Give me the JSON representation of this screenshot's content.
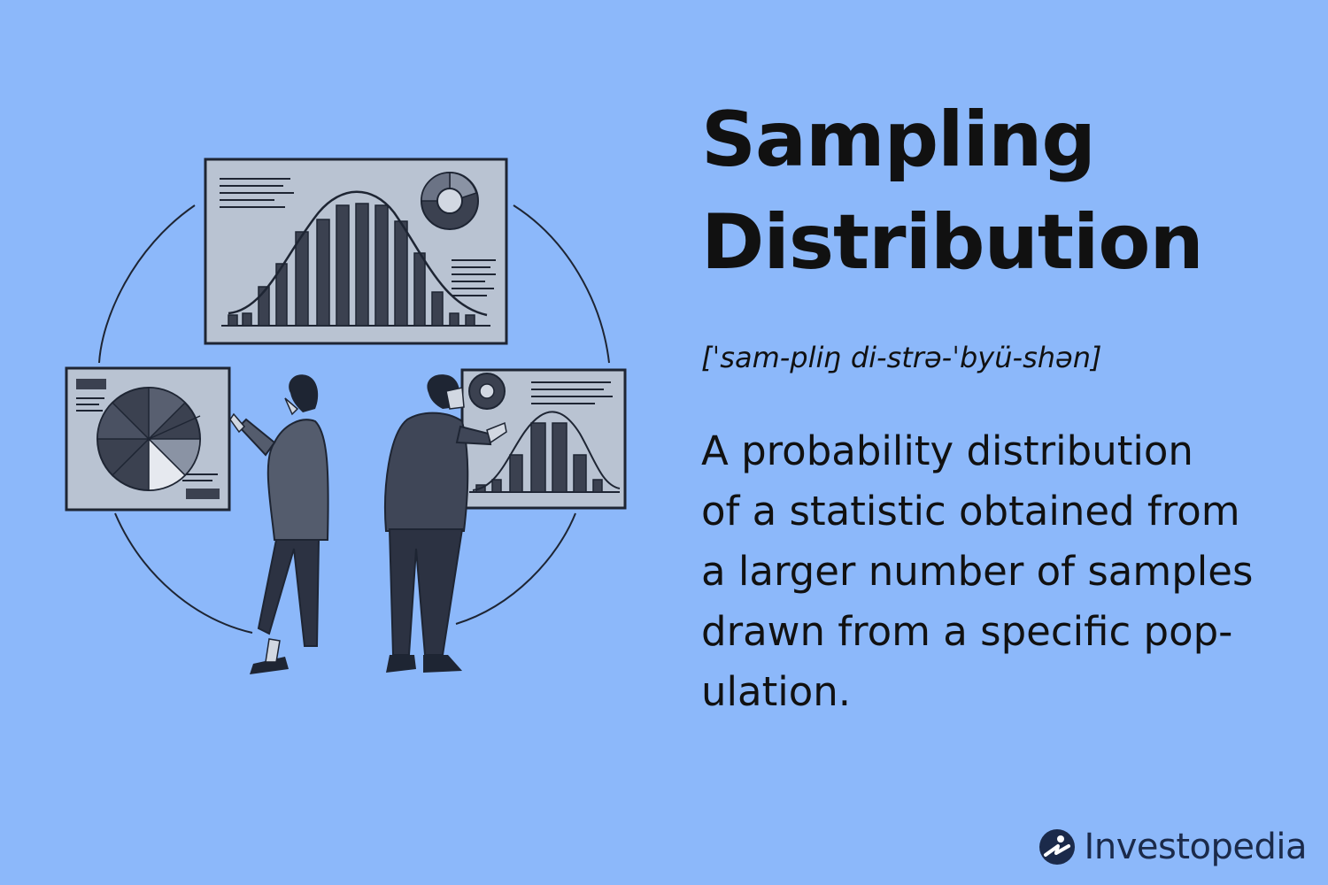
{
  "title": {
    "line1": "Sampling",
    "line2": "Distribution"
  },
  "pronunciation": "[ˈsam-pliŋ di-strə-ˈbyü-shən]",
  "definition": {
    "lines": [
      "A probability distribution",
      "of a statistic obtained from",
      "a larger number of samples",
      "drawn from a specific pop-",
      "ulation."
    ]
  },
  "brand": {
    "name": "Investopedia",
    "color": "#1b2a4a",
    "icon": "investopedia-logo-icon"
  },
  "colors": {
    "background": "#8cb8fa",
    "panel": "#b9c3d2",
    "ink": "#1e2533",
    "bar": "#3b4150"
  },
  "illustration": {
    "icons": [
      "bell-curve-chart-icon",
      "donut-chart-icon",
      "pie-chart-icon",
      "person-woman-icon",
      "person-man-icon"
    ]
  }
}
